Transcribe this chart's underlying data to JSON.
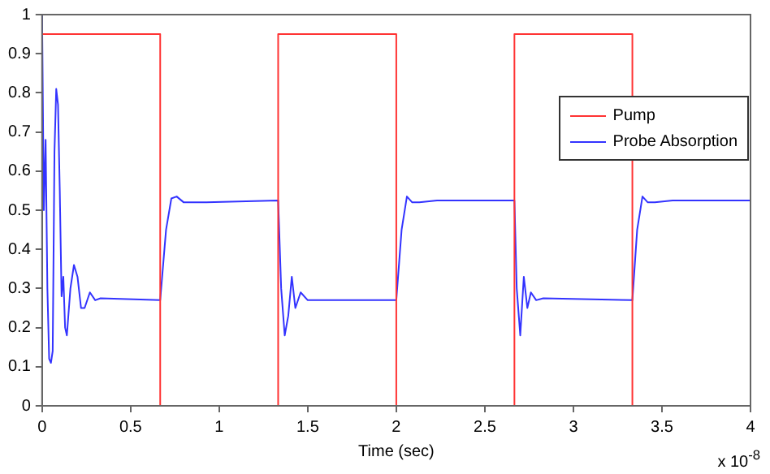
{
  "chart_data": {
    "type": "line",
    "xlabel": "Time (sec)",
    "annotations": [
      "x 10$^{-8}$"
    ],
    "xlim": [
      0,
      4
    ],
    "xticks": [
      0,
      0.5,
      1,
      1.5,
      2,
      2.5,
      3,
      3.5,
      4
    ],
    "ylim": [
      0,
      1
    ],
    "yticks": [
      0,
      0.1,
      0.2,
      0.3,
      0.4,
      0.5,
      0.6,
      0.7,
      0.8,
      0.9,
      1
    ],
    "grid": false,
    "legend": "top right",
    "marker": "none",
    "line_style": "solid",
    "series": [
      {
        "name": "Pump",
        "color": "#ff3333",
        "x": [
          0,
          0.667,
          0.667,
          1.333,
          1.333,
          2,
          2,
          2.667,
          2.667,
          3.333,
          3.333
        ],
        "values": [
          0.95,
          0.95,
          0,
          0,
          0.95,
          0.95,
          0,
          0,
          0.95,
          0.95,
          0
        ]
      },
      {
        "name": "Probe Absorption",
        "color": "#3333ff",
        "x": [
          0,
          0.01,
          0.02,
          0.03,
          0.04,
          0.05,
          0.06,
          0.07,
          0.08,
          0.09,
          0.1,
          0.11,
          0.12,
          0.13,
          0.14,
          0.16,
          0.18,
          0.2,
          0.22,
          0.24,
          0.27,
          0.3,
          0.33,
          0.667,
          0.7,
          0.73,
          0.76,
          0.8,
          0.9,
          1.333,
          1.35,
          1.37,
          1.39,
          1.41,
          1.43,
          1.46,
          1.5,
          2,
          2.03,
          2.06,
          2.09,
          2.13,
          2.23,
          2.667,
          2.68,
          2.7,
          2.72,
          2.74,
          2.76,
          2.79,
          2.83,
          3.333,
          3.36,
          3.39,
          3.42,
          3.46,
          3.56,
          4
        ],
        "values": [
          1,
          0.5,
          0.68,
          0.3,
          0.12,
          0.11,
          0.14,
          0.65,
          0.81,
          0.77,
          0.55,
          0.28,
          0.33,
          0.2,
          0.18,
          0.3,
          0.36,
          0.33,
          0.25,
          0.25,
          0.29,
          0.27,
          0.275,
          0.27,
          0.45,
          0.53,
          0.535,
          0.52,
          0.52,
          0.525,
          0.3,
          0.18,
          0.23,
          0.33,
          0.25,
          0.29,
          0.27,
          0.27,
          0.45,
          0.535,
          0.52,
          0.52,
          0.525,
          0.525,
          0.3,
          0.18,
          0.33,
          0.25,
          0.29,
          0.27,
          0.275,
          0.27,
          0.45,
          0.535,
          0.52,
          0.52,
          0.525,
          0.525
        ]
      }
    ]
  }
}
